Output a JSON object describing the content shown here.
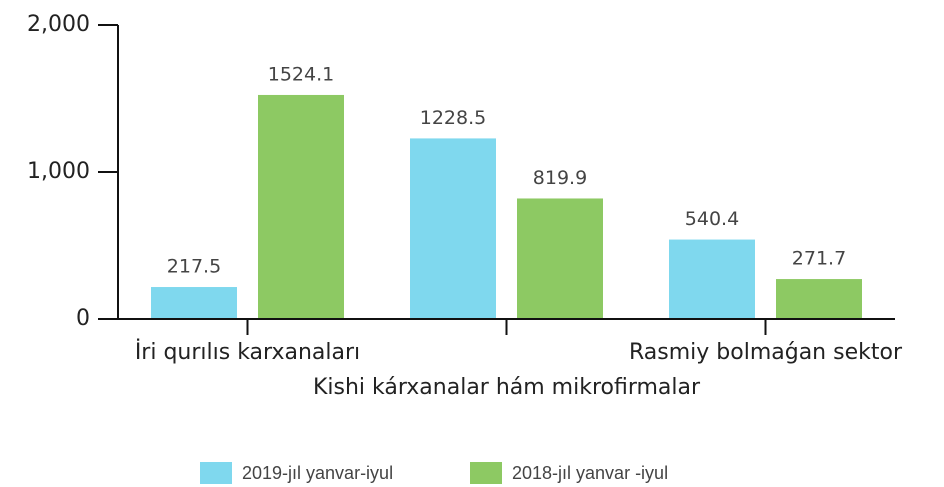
{
  "chart_data": {
    "type": "bar",
    "categories": [
      "İri qurılıs karxanaları",
      "Kishi kárxanalar hám mikrofirmalar",
      "Rasmiy bolmaǵan sektor"
    ],
    "series": [
      {
        "name": "2019-jıl yanvar-iyul",
        "color": "#7fd8ee",
        "values": [
          217.5,
          1228.5,
          540.4
        ]
      },
      {
        "name": "2018-jıl yanvar -iyul",
        "color": "#8dc963",
        "values": [
          1524.1,
          819.9,
          271.7
        ]
      }
    ],
    "ylim": [
      0,
      2000
    ],
    "yticks": [
      0,
      {
        "value": 1000,
        "label": "1,000"
      },
      {
        "value": 2000,
        "label": "2,000"
      }
    ]
  }
}
